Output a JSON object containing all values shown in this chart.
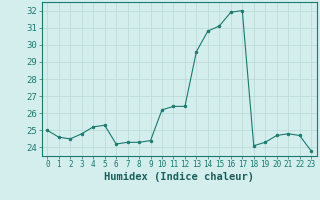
{
  "x": [
    0,
    1,
    2,
    3,
    4,
    5,
    6,
    7,
    8,
    9,
    10,
    11,
    12,
    13,
    14,
    15,
    16,
    17,
    18,
    19,
    20,
    21,
    22,
    23
  ],
  "y": [
    25.0,
    24.6,
    24.5,
    24.8,
    25.2,
    25.3,
    24.2,
    24.3,
    24.3,
    24.4,
    26.2,
    26.4,
    26.4,
    29.6,
    30.8,
    31.1,
    31.9,
    32.0,
    24.1,
    24.3,
    24.7,
    24.8,
    24.7,
    23.8
  ],
  "xlim": [
    -0.5,
    23.5
  ],
  "ylim": [
    23.5,
    32.5
  ],
  "yticks": [
    24,
    25,
    26,
    27,
    28,
    29,
    30,
    31,
    32
  ],
  "xticks": [
    0,
    1,
    2,
    3,
    4,
    5,
    6,
    7,
    8,
    9,
    10,
    11,
    12,
    13,
    14,
    15,
    16,
    17,
    18,
    19,
    20,
    21,
    22,
    23
  ],
  "xlabel": "Humidex (Indice chaleur)",
  "line_color": "#1a7a6e",
  "marker": "o",
  "marker_size": 2,
  "bg_color": "#d4eeed",
  "grid_color": "#b8d8d5",
  "tick_color": "#1a7a6e",
  "label_color": "#1a5f5a",
  "xlabel_fontsize": 7.5,
  "ytick_fontsize": 6.5,
  "xtick_fontsize": 5.5
}
